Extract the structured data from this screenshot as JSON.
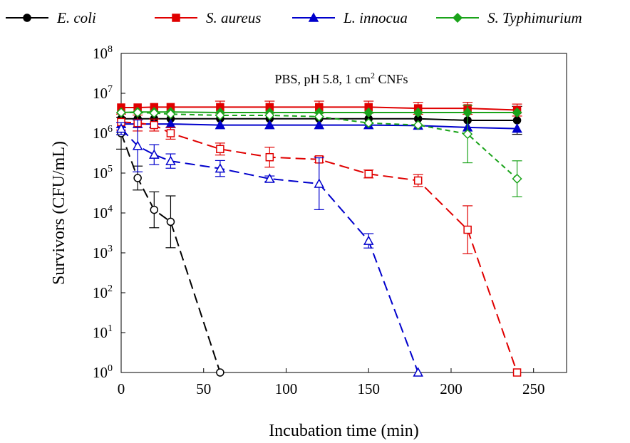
{
  "chart_data": {
    "type": "line",
    "xlabel": "Incubation time (min)",
    "ylabel": "Survivors (CFU/mL)",
    "y_scale": "log10",
    "xlim": [
      0,
      270
    ],
    "ylim_exponent": [
      0,
      8
    ],
    "x_ticks": [
      {
        "value": 0,
        "label": "0"
      },
      {
        "value": 50,
        "label": "50"
      },
      {
        "value": 100,
        "label": "100"
      },
      {
        "value": 150,
        "label": "150"
      },
      {
        "value": 200,
        "label": "200"
      },
      {
        "value": 250,
        "label": "250"
      }
    ],
    "y_ticks": [
      {
        "exp": 0,
        "base": "10",
        "sup": "0"
      },
      {
        "exp": 1,
        "base": "10",
        "sup": "1"
      },
      {
        "exp": 2,
        "base": "10",
        "sup": "2"
      },
      {
        "exp": 3,
        "base": "10",
        "sup": "3"
      },
      {
        "exp": 4,
        "base": "10",
        "sup": "4"
      },
      {
        "exp": 5,
        "base": "10",
        "sup": "5"
      },
      {
        "exp": 6,
        "base": "10",
        "sup": "6"
      },
      {
        "exp": 7,
        "base": "10",
        "sup": "7"
      },
      {
        "exp": 8,
        "base": "10",
        "sup": "8"
      }
    ],
    "annotation": {
      "prefix": "PBS, pH 5.8, 1 cm",
      "sup": "2",
      "suffix": " CNFs"
    },
    "legend_position": "top",
    "series": [
      {
        "name": "E. coli",
        "color": "#000000",
        "marker": "circle",
        "fill": "filled",
        "dash": "solid",
        "points": [
          [
            0,
            2300000.0,
            0
          ],
          [
            10,
            2300000.0,
            0
          ],
          [
            20,
            2300000.0,
            0
          ],
          [
            30,
            2300000.0,
            0
          ],
          [
            60,
            2300000.0,
            0
          ],
          [
            90,
            2300000.0,
            0
          ],
          [
            120,
            2300000.0,
            0
          ],
          [
            150,
            2300000.0,
            0
          ],
          [
            180,
            2300000.0,
            0
          ],
          [
            210,
            2100000.0,
            0
          ],
          [
            240,
            2100000.0,
            0.35
          ]
        ]
      },
      {
        "name": "S. aureus",
        "color": "#e00000",
        "marker": "square",
        "fill": "filled",
        "dash": "solid",
        "points": [
          [
            0,
            4400000.0,
            0
          ],
          [
            10,
            4400000.0,
            0
          ],
          [
            20,
            4500000.0,
            0
          ],
          [
            30,
            4500000.0,
            0
          ],
          [
            60,
            4500000.0,
            0.15
          ],
          [
            90,
            4500000.0,
            0.15
          ],
          [
            120,
            4500000.0,
            0.15
          ],
          [
            150,
            4500000.0,
            0.15
          ],
          [
            180,
            4200000.0,
            0.15
          ],
          [
            210,
            4200000.0,
            0.15
          ],
          [
            240,
            3800000.0,
            0.15
          ]
        ]
      },
      {
        "name": "L. innocua",
        "color": "#0000cc",
        "marker": "triangle",
        "fill": "filled",
        "dash": "solid",
        "points": [
          [
            0,
            1700000.0,
            0
          ],
          [
            10,
            1700000.0,
            0
          ],
          [
            20,
            1700000.0,
            0
          ],
          [
            30,
            1700000.0,
            0
          ],
          [
            60,
            1600000.0,
            0
          ],
          [
            90,
            1600000.0,
            0
          ],
          [
            120,
            1600000.0,
            0
          ],
          [
            150,
            1600000.0,
            0
          ],
          [
            180,
            1550000.0,
            0
          ],
          [
            210,
            1400000.0,
            0
          ],
          [
            240,
            1300000.0,
            0
          ]
        ]
      },
      {
        "name": "S. Typhimurium",
        "color": "#1aa31a",
        "marker": "diamond",
        "fill": "filled",
        "dash": "solid",
        "points": [
          [
            0,
            3300000.0,
            0
          ],
          [
            10,
            3400000.0,
            0
          ],
          [
            20,
            3400000.0,
            0
          ],
          [
            30,
            3400000.0,
            0
          ],
          [
            60,
            3300000.0,
            0
          ],
          [
            90,
            3300000.0,
            0
          ],
          [
            120,
            3300000.0,
            0
          ],
          [
            150,
            3300000.0,
            0
          ],
          [
            180,
            3300000.0,
            0
          ],
          [
            210,
            3300000.0,
            0
          ],
          [
            240,
            3300000.0,
            0
          ]
        ]
      },
      {
        "name": "",
        "color": "#000000",
        "marker": "circle",
        "fill": "open",
        "dash": "long",
        "points": [
          [
            0,
            1000000.0,
            0.4
          ],
          [
            10,
            75000.0,
            0.3
          ],
          [
            20,
            12000.0,
            0.45
          ],
          [
            30,
            6000.0,
            0.65
          ],
          [
            60,
            1,
            0
          ]
        ]
      },
      {
        "name": "",
        "color": "#e00000",
        "marker": "square",
        "fill": "open",
        "dash": "long",
        "points": [
          [
            0,
            1900000.0,
            0.2
          ],
          [
            10,
            1800000.0,
            0.2
          ],
          [
            20,
            1600000.0,
            0.15
          ],
          [
            30,
            1000000.0,
            0.15
          ],
          [
            60,
            400000.0,
            0.15
          ],
          [
            90,
            250000.0,
            0.25
          ],
          [
            120,
            220000.0,
            0.08
          ],
          [
            150,
            95000.0,
            0.1
          ],
          [
            180,
            65000.0,
            0.15
          ],
          [
            210,
            3800.0,
            0.6
          ],
          [
            240,
            1,
            0
          ]
        ]
      },
      {
        "name": "",
        "color": "#0000cc",
        "marker": "triangle",
        "fill": "open",
        "dash": "long",
        "points": [
          [
            0,
            1300000.0,
            0.15
          ],
          [
            10,
            480000.0,
            0.65
          ],
          [
            20,
            290000.0,
            0.25
          ],
          [
            30,
            200000.0,
            0.18
          ],
          [
            60,
            130000.0,
            0.2
          ],
          [
            90,
            72000.0,
            0.07
          ],
          [
            120,
            54000.0,
            0.65
          ],
          [
            150,
            2000.0,
            0.18
          ],
          [
            180,
            1,
            0
          ]
        ]
      },
      {
        "name": "",
        "color": "#1aa31a",
        "marker": "diamond",
        "fill": "open",
        "dash": "short",
        "points": [
          [
            0,
            3300000.0,
            0
          ],
          [
            10,
            3300000.0,
            0
          ],
          [
            20,
            3200000.0,
            0
          ],
          [
            30,
            3000000.0,
            0
          ],
          [
            60,
            2800000.0,
            0
          ],
          [
            90,
            2800000.0,
            0
          ],
          [
            120,
            2600000.0,
            0
          ],
          [
            150,
            1800000.0,
            0
          ],
          [
            180,
            1600000.0,
            0
          ],
          [
            210,
            950000.0,
            0.72
          ],
          [
            240,
            72000.0,
            0.45
          ]
        ]
      }
    ]
  }
}
